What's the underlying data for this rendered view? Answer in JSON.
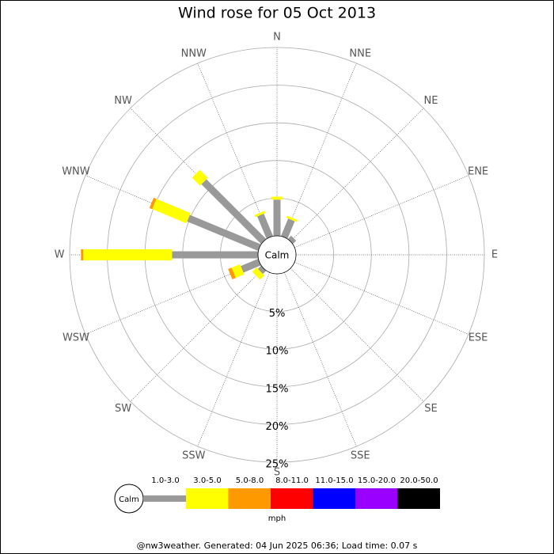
{
  "chart_data": {
    "type": "windrose",
    "title": "Wind rose for 05 Oct 2013",
    "directions": [
      "N",
      "NNE",
      "NE",
      "ENE",
      "E",
      "ESE",
      "SE",
      "SSE",
      "S",
      "SSW",
      "SW",
      "WSW",
      "W",
      "WNW",
      "NW",
      "NNW"
    ],
    "calm_label": "Calm",
    "rlim": [
      0,
      25
    ],
    "rticks": [
      {
        "value": 5,
        "label": "5%"
      },
      {
        "value": 10,
        "label": "10%"
      },
      {
        "value": 15,
        "label": "15%"
      },
      {
        "value": 20,
        "label": "20%"
      },
      {
        "value": 25,
        "label": "25%"
      }
    ],
    "legend_unit": "mph",
    "series": [
      {
        "name": "1.0-3.0",
        "color": "#999999",
        "values": [
          4.8,
          2.5,
          0.6,
          0,
          0,
          0,
          0,
          0,
          0,
          0,
          0.6,
          2.5,
          11.4,
          10.2,
          11.2,
          3.2
        ]
      },
      {
        "name": "3.0-5.0",
        "color": "#ffff00",
        "values": [
          0.4,
          0.3,
          0,
          0,
          0,
          0,
          0,
          0,
          0,
          0,
          0.8,
          1.2,
          11.8,
          4.9,
          1.5,
          0.3
        ]
      },
      {
        "name": "5.0-8.0",
        "color": "#ff9900",
        "values": [
          0,
          0,
          0,
          0,
          0,
          0,
          0,
          0,
          0,
          0,
          0,
          0.5,
          0.3,
          0.4,
          0,
          0
        ]
      },
      {
        "name": "8.0-11.0",
        "color": "#ff0000",
        "values": [
          0,
          0,
          0,
          0,
          0,
          0,
          0,
          0,
          0,
          0,
          0,
          0,
          0,
          0,
          0,
          0
        ]
      },
      {
        "name": "11.0-15.0",
        "color": "#0000ff",
        "values": [
          0,
          0,
          0,
          0,
          0,
          0,
          0,
          0,
          0,
          0,
          0,
          0,
          0,
          0,
          0,
          0
        ]
      },
      {
        "name": "15.0-20.0",
        "color": "#9900ff",
        "values": [
          0,
          0,
          0,
          0,
          0,
          0,
          0,
          0,
          0,
          0,
          0,
          0,
          0,
          0,
          0,
          0
        ]
      },
      {
        "name": "20.0-50.0",
        "color": "#000000",
        "values": [
          0,
          0,
          0,
          0,
          0,
          0,
          0,
          0,
          0,
          0,
          0,
          0,
          0,
          0,
          0,
          0
        ]
      }
    ],
    "footer": "@nw3weather. Generated: 04 Jun 2025 06:36; Load time: 0.07 s"
  }
}
